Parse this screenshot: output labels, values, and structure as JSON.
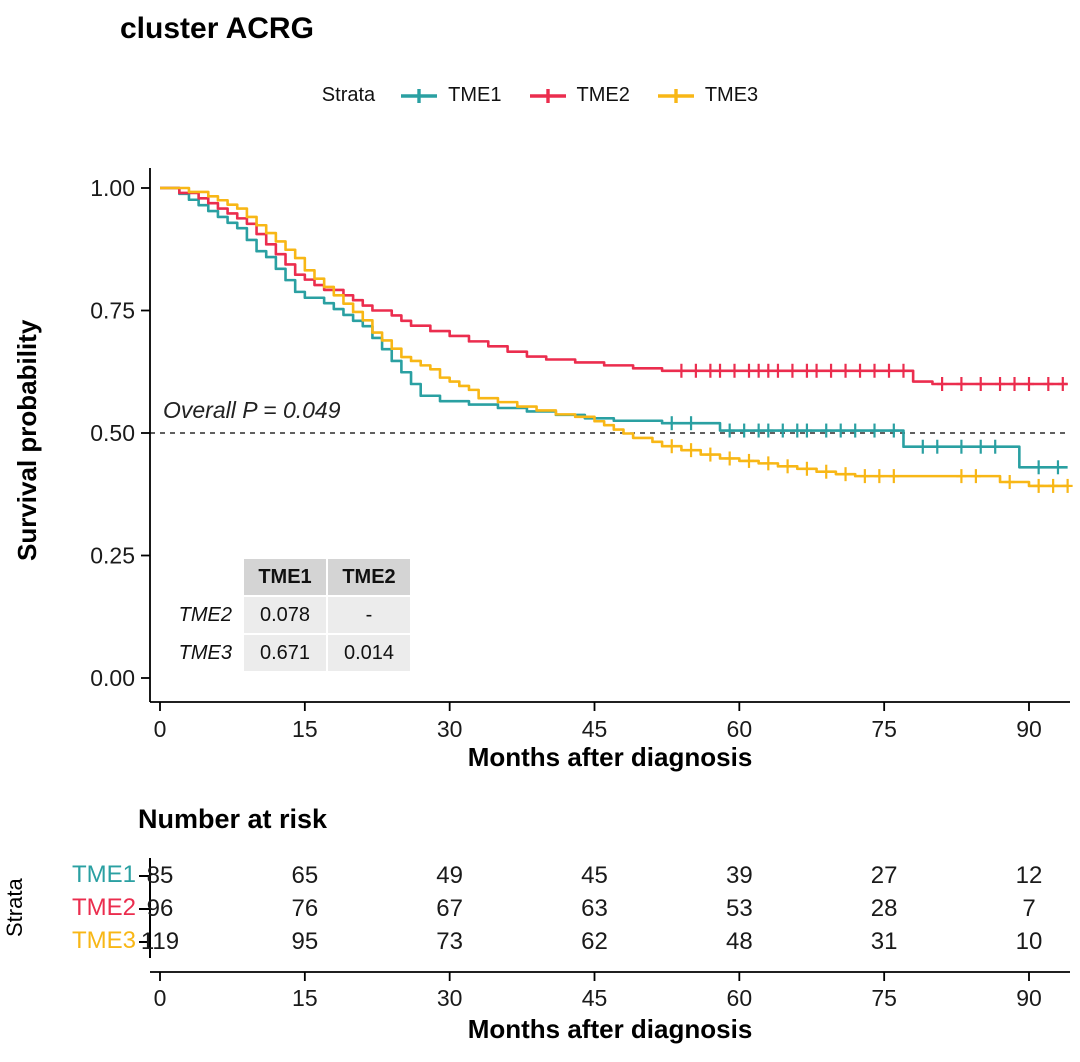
{
  "title": "cluster ACRG",
  "legend": {
    "label": "Strata",
    "items": [
      {
        "name": "TME1",
        "color": "#2AA0A2"
      },
      {
        "name": "TME2",
        "color": "#EB2D4E"
      },
      {
        "name": "TME3",
        "color": "#F8B716"
      }
    ]
  },
  "annotation": {
    "overall_p": "Overall P = 0.049"
  },
  "pairwise_table": {
    "col_headers": [
      "TME1",
      "TME2"
    ],
    "rows": [
      {
        "label": "TME2",
        "values": [
          "0.078",
          "-"
        ]
      },
      {
        "label": "TME3",
        "values": [
          "0.671",
          "0.014"
        ]
      }
    ]
  },
  "risk_table": {
    "title": "Number at risk",
    "axis_label": "Strata",
    "columns": [
      0,
      15,
      30,
      45,
      60,
      75,
      90
    ],
    "rows": [
      {
        "name": "TME1",
        "color": "#2AA0A2",
        "values": [
          85,
          65,
          49,
          45,
          39,
          27,
          12
        ]
      },
      {
        "name": "TME2",
        "color": "#EB2D4E",
        "values": [
          96,
          76,
          67,
          63,
          53,
          28,
          7
        ]
      },
      {
        "name": "TME3",
        "color": "#F8B716",
        "values": [
          119,
          95,
          73,
          62,
          48,
          31,
          10
        ]
      }
    ]
  },
  "chart_data": {
    "type": "line",
    "subtype": "kaplan-meier-step",
    "title": "cluster ACRG",
    "xlabel": "Months after diagnosis",
    "ylabel": "Survival probability",
    "xlim": [
      0,
      94
    ],
    "ylim": [
      0,
      1
    ],
    "xticks": [
      0,
      15,
      30,
      45,
      60,
      75,
      90
    ],
    "yticks": [
      0,
      0.25,
      0.5,
      0.75,
      1
    ],
    "ytick_labels": [
      "0.00",
      "0.25",
      "0.50",
      "0.75",
      "1.00"
    ],
    "grid": false,
    "legend_position": "top",
    "reference_line_y": 0.5,
    "series": [
      {
        "name": "TME1",
        "color": "#2AA0A2",
        "points": [
          [
            0,
            1
          ],
          [
            2,
            0.988
          ],
          [
            3,
            0.976
          ],
          [
            4,
            0.965
          ],
          [
            5,
            0.953
          ],
          [
            6,
            0.941
          ],
          [
            7,
            0.929
          ],
          [
            8,
            0.918
          ],
          [
            9,
            0.894
          ],
          [
            10,
            0.871
          ],
          [
            11,
            0.859
          ],
          [
            12,
            0.835
          ],
          [
            13,
            0.812
          ],
          [
            14,
            0.788
          ],
          [
            15,
            0.776
          ],
          [
            17,
            0.765
          ],
          [
            18,
            0.753
          ],
          [
            19,
            0.741
          ],
          [
            20,
            0.729
          ],
          [
            21,
            0.718
          ],
          [
            22,
            0.694
          ],
          [
            23,
            0.671
          ],
          [
            24,
            0.647
          ],
          [
            25,
            0.624
          ],
          [
            26,
            0.6
          ],
          [
            27,
            0.576
          ],
          [
            29,
            0.565
          ],
          [
            32,
            0.558
          ],
          [
            35,
            0.551
          ],
          [
            38,
            0.544
          ],
          [
            41,
            0.537
          ],
          [
            44,
            0.53
          ],
          [
            47,
            0.525
          ],
          [
            52,
            0.52
          ],
          [
            58,
            0.505
          ],
          [
            77,
            0.472
          ],
          [
            89,
            0.43
          ]
        ],
        "censor_marks": [
          [
            53,
            0.52
          ],
          [
            55,
            0.52
          ],
          [
            59,
            0.505
          ],
          [
            60.5,
            0.505
          ],
          [
            62,
            0.505
          ],
          [
            63,
            0.505
          ],
          [
            64.5,
            0.505
          ],
          [
            66,
            0.505
          ],
          [
            67,
            0.505
          ],
          [
            69,
            0.505
          ],
          [
            70.5,
            0.505
          ],
          [
            72,
            0.505
          ],
          [
            74,
            0.505
          ],
          [
            76,
            0.505
          ],
          [
            79,
            0.472
          ],
          [
            80.5,
            0.472
          ],
          [
            83,
            0.472
          ],
          [
            85,
            0.472
          ],
          [
            86.5,
            0.472
          ],
          [
            91,
            0.43
          ],
          [
            93,
            0.43
          ]
        ]
      },
      {
        "name": "TME2",
        "color": "#EB2D4E",
        "points": [
          [
            0,
            1
          ],
          [
            2,
            0.99
          ],
          [
            4,
            0.979
          ],
          [
            5,
            0.969
          ],
          [
            6,
            0.958
          ],
          [
            7,
            0.948
          ],
          [
            8,
            0.938
          ],
          [
            9,
            0.927
          ],
          [
            10,
            0.906
          ],
          [
            11,
            0.885
          ],
          [
            12,
            0.865
          ],
          [
            13,
            0.844
          ],
          [
            14,
            0.823
          ],
          [
            15,
            0.813
          ],
          [
            16,
            0.802
          ],
          [
            17,
            0.792
          ],
          [
            19,
            0.781
          ],
          [
            20,
            0.771
          ],
          [
            21,
            0.76
          ],
          [
            22,
            0.75
          ],
          [
            24,
            0.74
          ],
          [
            25,
            0.729
          ],
          [
            26,
            0.719
          ],
          [
            28,
            0.708
          ],
          [
            30,
            0.698
          ],
          [
            32,
            0.687
          ],
          [
            34,
            0.677
          ],
          [
            36,
            0.666
          ],
          [
            38,
            0.656
          ],
          [
            40,
            0.65
          ],
          [
            43,
            0.644
          ],
          [
            46,
            0.638
          ],
          [
            49,
            0.632
          ],
          [
            52,
            0.627
          ],
          [
            78,
            0.605
          ],
          [
            80,
            0.6
          ]
        ],
        "censor_marks": [
          [
            54,
            0.627
          ],
          [
            55.5,
            0.627
          ],
          [
            57,
            0.627
          ],
          [
            58,
            0.627
          ],
          [
            59.5,
            0.627
          ],
          [
            61,
            0.627
          ],
          [
            62,
            0.627
          ],
          [
            63,
            0.627
          ],
          [
            64,
            0.627
          ],
          [
            65.5,
            0.627
          ],
          [
            67,
            0.627
          ],
          [
            68,
            0.627
          ],
          [
            69.5,
            0.627
          ],
          [
            71,
            0.627
          ],
          [
            72.5,
            0.627
          ],
          [
            74,
            0.627
          ],
          [
            75.5,
            0.627
          ],
          [
            77,
            0.627
          ],
          [
            81,
            0.6
          ],
          [
            83,
            0.6
          ],
          [
            85,
            0.6
          ],
          [
            87,
            0.6
          ],
          [
            88.5,
            0.6
          ],
          [
            90,
            0.6
          ],
          [
            92,
            0.6
          ],
          [
            93.5,
            0.6
          ]
        ]
      },
      {
        "name": "TME3",
        "color": "#F8B716",
        "points": [
          [
            0,
            1
          ],
          [
            3,
            0.992
          ],
          [
            5,
            0.983
          ],
          [
            6,
            0.975
          ],
          [
            7,
            0.966
          ],
          [
            8,
            0.958
          ],
          [
            9,
            0.941
          ],
          [
            10,
            0.924
          ],
          [
            11,
            0.908
          ],
          [
            12,
            0.891
          ],
          [
            13,
            0.874
          ],
          [
            14,
            0.857
          ],
          [
            15,
            0.832
          ],
          [
            16,
            0.815
          ],
          [
            17,
            0.798
          ],
          [
            18,
            0.781
          ],
          [
            19,
            0.764
          ],
          [
            20,
            0.747
          ],
          [
            21,
            0.73
          ],
          [
            22,
            0.705
          ],
          [
            23,
            0.689
          ],
          [
            24,
            0.672
          ],
          [
            25,
            0.655
          ],
          [
            26,
            0.647
          ],
          [
            27,
            0.638
          ],
          [
            28,
            0.63
          ],
          [
            29,
            0.613
          ],
          [
            30,
            0.605
          ],
          [
            31,
            0.596
          ],
          [
            32,
            0.588
          ],
          [
            33,
            0.571
          ],
          [
            35,
            0.563
          ],
          [
            37,
            0.554
          ],
          [
            39,
            0.546
          ],
          [
            41,
            0.538
          ],
          [
            43,
            0.533
          ],
          [
            45,
            0.524
          ],
          [
            46,
            0.516
          ],
          [
            47,
            0.507
          ],
          [
            48,
            0.499
          ],
          [
            49,
            0.49
          ],
          [
            51,
            0.482
          ],
          [
            52,
            0.473
          ],
          [
            54,
            0.465
          ],
          [
            56,
            0.456
          ],
          [
            58,
            0.448
          ],
          [
            60,
            0.443
          ],
          [
            62,
            0.438
          ],
          [
            64,
            0.432
          ],
          [
            66,
            0.427
          ],
          [
            68,
            0.421
          ],
          [
            70,
            0.416
          ],
          [
            72,
            0.412
          ],
          [
            87,
            0.4
          ],
          [
            90,
            0.392
          ]
        ],
        "censor_marks": [
          [
            53,
            0.473
          ],
          [
            55,
            0.465
          ],
          [
            57,
            0.456
          ],
          [
            59,
            0.448
          ],
          [
            61,
            0.443
          ],
          [
            63,
            0.438
          ],
          [
            65,
            0.432
          ],
          [
            67,
            0.427
          ],
          [
            69,
            0.421
          ],
          [
            71,
            0.416
          ],
          [
            73,
            0.412
          ],
          [
            74.5,
            0.412
          ],
          [
            76,
            0.412
          ],
          [
            83,
            0.412
          ],
          [
            84.5,
            0.412
          ],
          [
            88,
            0.4
          ],
          [
            91,
            0.392
          ],
          [
            92.5,
            0.392
          ],
          [
            94,
            0.392
          ]
        ]
      }
    ]
  }
}
